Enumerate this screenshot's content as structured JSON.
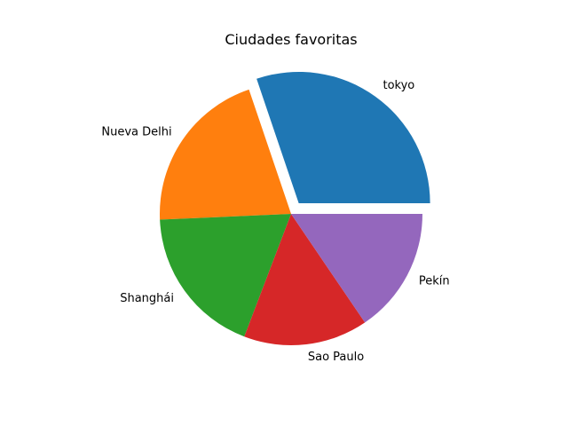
{
  "chart_data": {
    "type": "pie",
    "title": "Ciudades favoritas",
    "categories": [
      "tokyo",
      "Nueva Delhi",
      "Shanghái",
      "Sao Paulo",
      "Pekín"
    ],
    "values": [
      30.2,
      20.5,
      18.5,
      15.3,
      15.5
    ],
    "colors": [
      "#1f77b4",
      "#ff7f0e",
      "#2ca02c",
      "#d62728",
      "#9467bd"
    ],
    "explode": [
      0.1,
      0,
      0,
      0,
      0
    ],
    "start_angle_deg": 0,
    "direction": "counterclockwise",
    "legend": false
  }
}
